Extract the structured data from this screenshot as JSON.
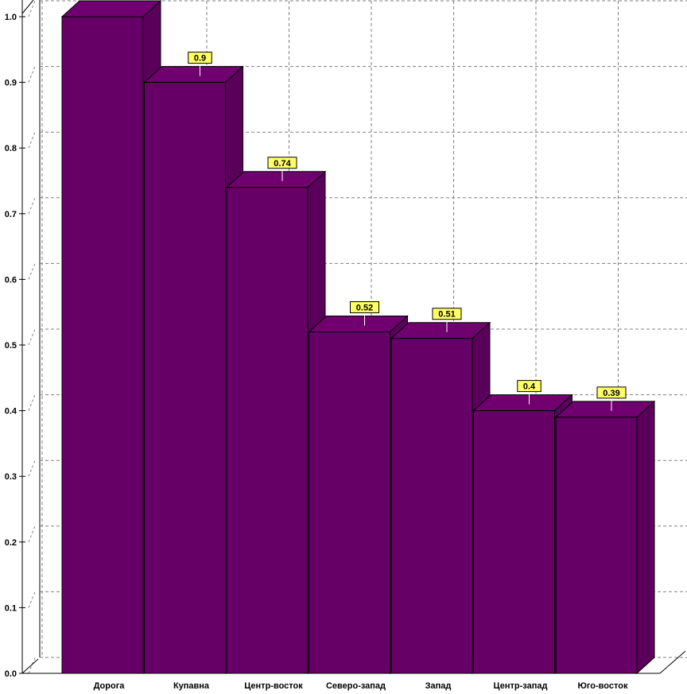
{
  "chart_data": {
    "type": "bar",
    "categories": [
      "Дорога",
      "Купавна",
      "Центр-восток",
      "Северо-запад",
      "Запад",
      "Центр-запад",
      "Юго-восток"
    ],
    "values": [
      1.0,
      0.9,
      0.74,
      0.52,
      0.51,
      0.4,
      0.39
    ],
    "data_labels": [
      "",
      "0.9",
      "0.74",
      "0.52",
      "0.51",
      "0.4",
      "0.39"
    ],
    "yticks": [
      "0.0",
      "0.1",
      "0.2",
      "0.3",
      "0.4",
      "0.5",
      "0.6",
      "0.7",
      "0.8",
      "0.9",
      "1.0"
    ],
    "ylim": [
      0,
      1.0
    ],
    "grid": true,
    "style": "3d",
    "colors": {
      "bar_front": "#660066",
      "bar_side": "#5a005a",
      "bar_top": "#700070",
      "label_bg": "#ffff66",
      "grid": "#808080"
    }
  }
}
